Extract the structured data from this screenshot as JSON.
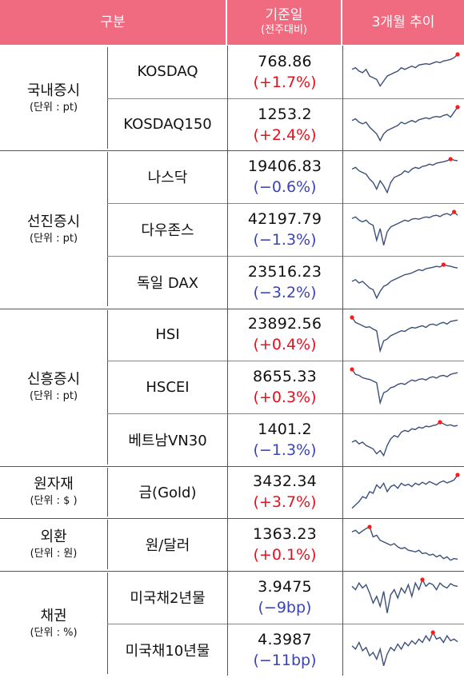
{
  "header": {
    "category": "구분",
    "value_title": "기준일",
    "value_subtitle": "(전주대비)",
    "trend": "3개월 추이"
  },
  "colors": {
    "header_bg": "#f06b7f",
    "up": "#e8101c",
    "down": "#3a44b8",
    "line": "#3b4f7a",
    "marker": "#ff1a1a"
  },
  "groups": [
    {
      "name": "국내증시",
      "unit": "(단위 : pt)",
      "items": [
        {
          "name": "KOSDAQ",
          "value": "768.86",
          "change": "(+1.7%)",
          "direction": "up",
          "trend": [
            0.55,
            0.6,
            0.5,
            0.45,
            0.55,
            0.35,
            0.3,
            0.25,
            0.05,
            0.2,
            0.35,
            0.4,
            0.45,
            0.5,
            0.6,
            0.55,
            0.6,
            0.65,
            0.6,
            0.68,
            0.7,
            0.72,
            0.7,
            0.74,
            0.78,
            0.75,
            0.8,
            0.82,
            0.85,
            0.9,
            1.0
          ]
        },
        {
          "name": "KOSDAQ150",
          "value": "1253.2",
          "change": "(+2.4%)",
          "direction": "up",
          "trend": [
            0.6,
            0.65,
            0.55,
            0.5,
            0.55,
            0.4,
            0.3,
            0.2,
            0.0,
            0.2,
            0.3,
            0.35,
            0.4,
            0.45,
            0.55,
            0.5,
            0.55,
            0.6,
            0.55,
            0.62,
            0.65,
            0.68,
            0.65,
            0.7,
            0.72,
            0.7,
            0.75,
            0.78,
            0.7,
            0.85,
            1.0
          ]
        }
      ]
    },
    {
      "name": "선진증시",
      "unit": "(단위 : pt)",
      "items": [
        {
          "name": "나스닥",
          "value": "19406.83",
          "change": "(−0.6%)",
          "direction": "down",
          "trend": [
            0.7,
            0.75,
            0.65,
            0.6,
            0.55,
            0.4,
            0.3,
            0.1,
            0.35,
            0.2,
            0.0,
            0.3,
            0.45,
            0.5,
            0.55,
            0.65,
            0.6,
            0.7,
            0.75,
            0.72,
            0.78,
            0.8,
            0.85,
            0.82,
            0.88,
            0.9,
            0.92,
            0.95,
            1.0,
            0.97,
            0.95
          ]
        },
        {
          "name": "다우존스",
          "value": "42197.79",
          "change": "(−1.3%)",
          "direction": "down",
          "trend": [
            0.8,
            0.85,
            0.75,
            0.7,
            0.75,
            0.65,
            0.6,
            0.15,
            0.5,
            0.0,
            0.4,
            0.55,
            0.6,
            0.65,
            0.7,
            0.75,
            0.72,
            0.78,
            0.8,
            0.78,
            0.82,
            0.85,
            0.83,
            0.88,
            0.9,
            0.86,
            0.92,
            0.95,
            0.9,
            1.0,
            0.9
          ]
        },
        {
          "name": "독일 DAX",
          "value": "23516.23",
          "change": "(−3.2%)",
          "direction": "down",
          "trend": [
            0.5,
            0.55,
            0.45,
            0.5,
            0.4,
            0.3,
            0.25,
            0.0,
            0.2,
            0.35,
            0.4,
            0.5,
            0.55,
            0.6,
            0.65,
            0.7,
            0.72,
            0.75,
            0.8,
            0.85,
            0.82,
            0.88,
            0.9,
            0.92,
            0.95,
            0.93,
            1.0,
            0.97,
            0.95,
            0.92,
            0.9
          ]
        }
      ]
    },
    {
      "name": "신흥증시",
      "unit": "(단위 : pt)",
      "items": [
        {
          "name": "HSI",
          "value": "23892.56",
          "change": "(+0.4%)",
          "direction": "up",
          "trend": [
            1.0,
            0.85,
            0.8,
            0.75,
            0.7,
            0.72,
            0.65,
            0.6,
            0.0,
            0.3,
            0.35,
            0.45,
            0.5,
            0.55,
            0.6,
            0.58,
            0.65,
            0.7,
            0.68,
            0.72,
            0.75,
            0.7,
            0.78,
            0.8,
            0.76,
            0.82,
            0.85,
            0.8,
            0.88,
            0.9,
            0.92
          ]
        },
        {
          "name": "HSCEI",
          "value": "8655.33",
          "change": "(+0.3%)",
          "direction": "up",
          "trend": [
            1.0,
            0.85,
            0.82,
            0.75,
            0.72,
            0.7,
            0.65,
            0.6,
            0.0,
            0.3,
            0.35,
            0.45,
            0.48,
            0.55,
            0.58,
            0.55,
            0.62,
            0.68,
            0.65,
            0.7,
            0.72,
            0.68,
            0.75,
            0.78,
            0.74,
            0.8,
            0.82,
            0.78,
            0.85,
            0.88,
            0.9
          ]
        },
        {
          "name": "베트남VN30",
          "value": "1401.2",
          "change": "(−1.3%)",
          "direction": "down",
          "trend": [
            0.4,
            0.45,
            0.35,
            0.4,
            0.3,
            0.25,
            0.2,
            0.05,
            0.15,
            0.0,
            0.3,
            0.5,
            0.6,
            0.55,
            0.7,
            0.75,
            0.72,
            0.8,
            0.78,
            0.85,
            0.82,
            0.88,
            0.86,
            0.9,
            0.92,
            1.0,
            0.95,
            0.9,
            0.92,
            0.88,
            0.9
          ]
        }
      ]
    },
    {
      "name": "원자재",
      "unit": "(단위 : $ )",
      "items": [
        {
          "name": "금(Gold)",
          "value": "3432.34",
          "change": "(+3.7%)",
          "direction": "up",
          "trend": [
            0.0,
            0.1,
            0.2,
            0.35,
            0.3,
            0.5,
            0.45,
            0.7,
            0.6,
            0.75,
            0.5,
            0.65,
            0.7,
            0.6,
            0.75,
            0.68,
            0.72,
            0.65,
            0.75,
            0.7,
            0.78,
            0.72,
            0.8,
            0.75,
            0.7,
            0.78,
            0.82,
            0.76,
            0.8,
            0.85,
            1.0
          ]
        }
      ]
    },
    {
      "name": "외환",
      "unit": "(단위 : 원)",
      "items": [
        {
          "name": "원/달러",
          "value": "1363.23",
          "change": "(+0.1%)",
          "direction": "up",
          "trend": [
            0.85,
            0.9,
            0.8,
            0.88,
            0.95,
            1.0,
            0.7,
            0.75,
            0.6,
            0.55,
            0.5,
            0.45,
            0.5,
            0.4,
            0.35,
            0.38,
            0.3,
            0.28,
            0.25,
            0.3,
            0.2,
            0.22,
            0.15,
            0.18,
            0.1,
            0.15,
            0.05,
            0.1,
            0.0,
            0.05,
            0.03
          ]
        }
      ]
    },
    {
      "name": "채권",
      "unit": "(단위 : %)",
      "items": [
        {
          "name": "미국채2년물",
          "value": "3.9475",
          "change": "(−9bp)",
          "direction": "down",
          "trend": [
            0.8,
            0.7,
            0.9,
            0.75,
            0.85,
            0.6,
            0.3,
            0.5,
            0.2,
            0.65,
            0.0,
            0.55,
            0.7,
            0.45,
            0.75,
            0.6,
            0.85,
            0.5,
            0.9,
            0.7,
            1.0,
            0.8,
            0.9,
            0.85,
            0.7,
            0.9,
            0.8,
            0.75,
            0.88,
            0.82,
            0.8
          ]
        },
        {
          "name": "미국채10년물",
          "value": "4.3987",
          "change": "(−11bp)",
          "direction": "down",
          "trend": [
            0.6,
            0.5,
            0.7,
            0.45,
            0.55,
            0.3,
            0.4,
            0.2,
            0.5,
            0.0,
            0.35,
            0.55,
            0.45,
            0.65,
            0.5,
            0.7,
            0.6,
            0.75,
            0.65,
            0.8,
            0.7,
            0.9,
            0.75,
            1.0,
            0.8,
            0.85,
            0.7,
            0.9,
            0.75,
            0.8,
            0.72
          ]
        }
      ]
    }
  ]
}
